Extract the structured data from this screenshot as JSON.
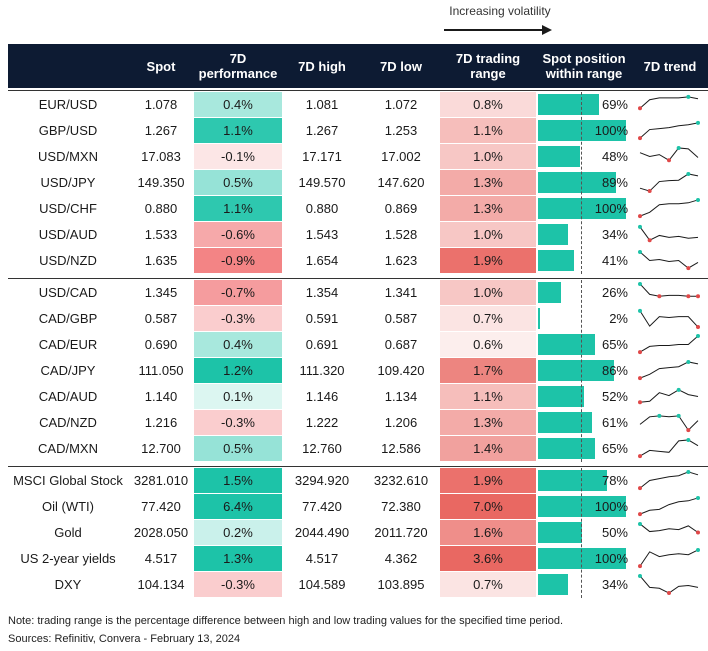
{
  "volatility_label": "Increasing volatility",
  "headers": [
    "",
    "Spot",
    "7D performance",
    "7D high",
    "7D low",
    "7D trading range",
    "Spot position within range",
    "7D trend"
  ],
  "groups": [
    [
      {
        "name": "EUR/USD",
        "spot": "1.078",
        "perf": "0.4%",
        "high": "1.081",
        "low": "1.072",
        "range": "0.8%",
        "pos": "69%",
        "trend": [
          0.3,
          0.75,
          0.85,
          0.85,
          0.85,
          0.9,
          0.8
        ]
      },
      {
        "name": "GBP/USD",
        "spot": "1.267",
        "perf": "1.1%",
        "high": "1.267",
        "low": "1.253",
        "range": "1.1%",
        "pos": "100%",
        "trend": [
          0.1,
          0.55,
          0.6,
          0.65,
          0.75,
          0.8,
          0.9
        ]
      },
      {
        "name": "USD/MXN",
        "spot": "17.083",
        "perf": "-0.1%",
        "high": "17.171",
        "low": "17.002",
        "range": "1.0%",
        "pos": "48%",
        "trend": [
          0.7,
          0.5,
          0.6,
          0.3,
          0.95,
          0.9,
          0.45
        ]
      },
      {
        "name": "USD/JPY",
        "spot": "149.350",
        "perf": "0.5%",
        "high": "149.570",
        "low": "147.620",
        "range": "1.3%",
        "pos": "89%",
        "trend": [
          0.2,
          0.05,
          0.55,
          0.6,
          0.62,
          0.95,
          0.85
        ]
      },
      {
        "name": "USD/CHF",
        "spot": "0.880",
        "perf": "1.1%",
        "high": "0.880",
        "low": "0.869",
        "range": "1.3%",
        "pos": "100%",
        "trend": [
          0.1,
          0.3,
          0.7,
          0.75,
          0.75,
          0.8,
          0.95
        ]
      },
      {
        "name": "USD/AUD",
        "spot": "1.533",
        "perf": "-0.6%",
        "high": "1.543",
        "low": "1.528",
        "range": "1.0%",
        "pos": "34%",
        "trend": [
          0.9,
          0.2,
          0.45,
          0.35,
          0.4,
          0.3,
          0.35
        ]
      },
      {
        "name": "USD/NZD",
        "spot": "1.635",
        "perf": "-0.9%",
        "high": "1.654",
        "low": "1.623",
        "range": "1.9%",
        "pos": "41%",
        "trend": [
          0.95,
          0.5,
          0.55,
          0.45,
          0.5,
          0.1,
          0.4
        ]
      }
    ],
    [
      {
        "name": "USD/CAD",
        "spot": "1.345",
        "perf": "-0.7%",
        "high": "1.354",
        "low": "1.341",
        "range": "1.0%",
        "pos": "26%",
        "trend": [
          0.95,
          0.4,
          0.3,
          0.35,
          0.35,
          0.3,
          0.3
        ]
      },
      {
        "name": "CAD/GBP",
        "spot": "0.587",
        "perf": "-0.3%",
        "high": "0.591",
        "low": "0.587",
        "range": "0.7%",
        "pos": "2%",
        "trend": [
          0.9,
          0.1,
          0.6,
          0.55,
          0.6,
          0.6,
          0.05
        ]
      },
      {
        "name": "CAD/EUR",
        "spot": "0.690",
        "perf": "0.4%",
        "high": "0.691",
        "low": "0.687",
        "range": "0.6%",
        "pos": "65%",
        "trend": [
          0.1,
          0.4,
          0.45,
          0.45,
          0.5,
          0.5,
          0.95
        ]
      },
      {
        "name": "CAD/JPY",
        "spot": "111.050",
        "perf": "1.2%",
        "high": "111.320",
        "low": "109.420",
        "range": "1.7%",
        "pos": "86%",
        "trend": [
          0.1,
          0.3,
          0.6,
          0.65,
          0.7,
          0.95,
          0.85
        ]
      },
      {
        "name": "CAD/AUD",
        "spot": "1.140",
        "perf": "0.1%",
        "high": "1.146",
        "low": "1.134",
        "range": "1.1%",
        "pos": "52%",
        "trend": [
          0.2,
          0.25,
          0.7,
          0.55,
          0.85,
          0.6,
          0.5
        ]
      },
      {
        "name": "CAD/NZD",
        "spot": "1.216",
        "perf": "-0.3%",
        "high": "1.222",
        "low": "1.206",
        "range": "1.3%",
        "pos": "61%",
        "trend": [
          0.4,
          0.8,
          0.85,
          0.8,
          0.85,
          0.1,
          0.6
        ]
      },
      {
        "name": "CAD/MXN",
        "spot": "12.700",
        "perf": "0.5%",
        "high": "12.760",
        "low": "12.586",
        "range": "1.4%",
        "pos": "65%",
        "trend": [
          0.1,
          0.4,
          0.35,
          0.3,
          0.9,
          0.95,
          0.65
        ]
      }
    ],
    [
      {
        "name": "MSCI Global Stock",
        "spot": "3281.010",
        "perf": "1.5%",
        "high": "3294.920",
        "low": "3232.610",
        "range": "1.9%",
        "pos": "78%",
        "trend": [
          0.1,
          0.5,
          0.6,
          0.7,
          0.75,
          0.95,
          0.8
        ]
      },
      {
        "name": "Oil (WTI)",
        "spot": "77.420",
        "perf": "6.4%",
        "high": "77.420",
        "low": "72.380",
        "range": "7.0%",
        "pos": "100%",
        "trend": [
          0.1,
          0.3,
          0.35,
          0.6,
          0.75,
          0.8,
          0.95
        ]
      },
      {
        "name": "Gold",
        "spot": "2028.050",
        "perf": "0.2%",
        "high": "2044.490",
        "low": "2011.720",
        "range": "1.6%",
        "pos": "50%",
        "trend": [
          0.95,
          0.55,
          0.6,
          0.7,
          0.65,
          0.85,
          0.5
        ]
      },
      {
        "name": "US 2-year yields",
        "spot": "4.517",
        "perf": "1.3%",
        "high": "4.517",
        "low": "4.362",
        "range": "3.6%",
        "pos": "100%",
        "trend": [
          0.1,
          0.85,
          0.6,
          0.7,
          0.75,
          0.7,
          0.95
        ]
      },
      {
        "name": "DXY",
        "spot": "104.134",
        "perf": "-0.3%",
        "high": "104.589",
        "low": "103.895",
        "range": "0.7%",
        "pos": "34%",
        "trend": [
          0.95,
          0.35,
          0.3,
          0.05,
          0.4,
          0.45,
          0.35
        ]
      }
    ]
  ],
  "note": "Note: trading range is the percentage difference between high and low trading values for the specified time period.",
  "sources": "Sources: Refinitiv, Convera - February 13, 2024",
  "colors": {
    "header_bg": "#0d1b33",
    "positive": "#1dc3a8",
    "negative": "#ef5f61",
    "range": "#e8605a",
    "trend_line": "#1a1a1a",
    "trend_high": "#1dc3a8",
    "trend_low": "#e04848"
  }
}
